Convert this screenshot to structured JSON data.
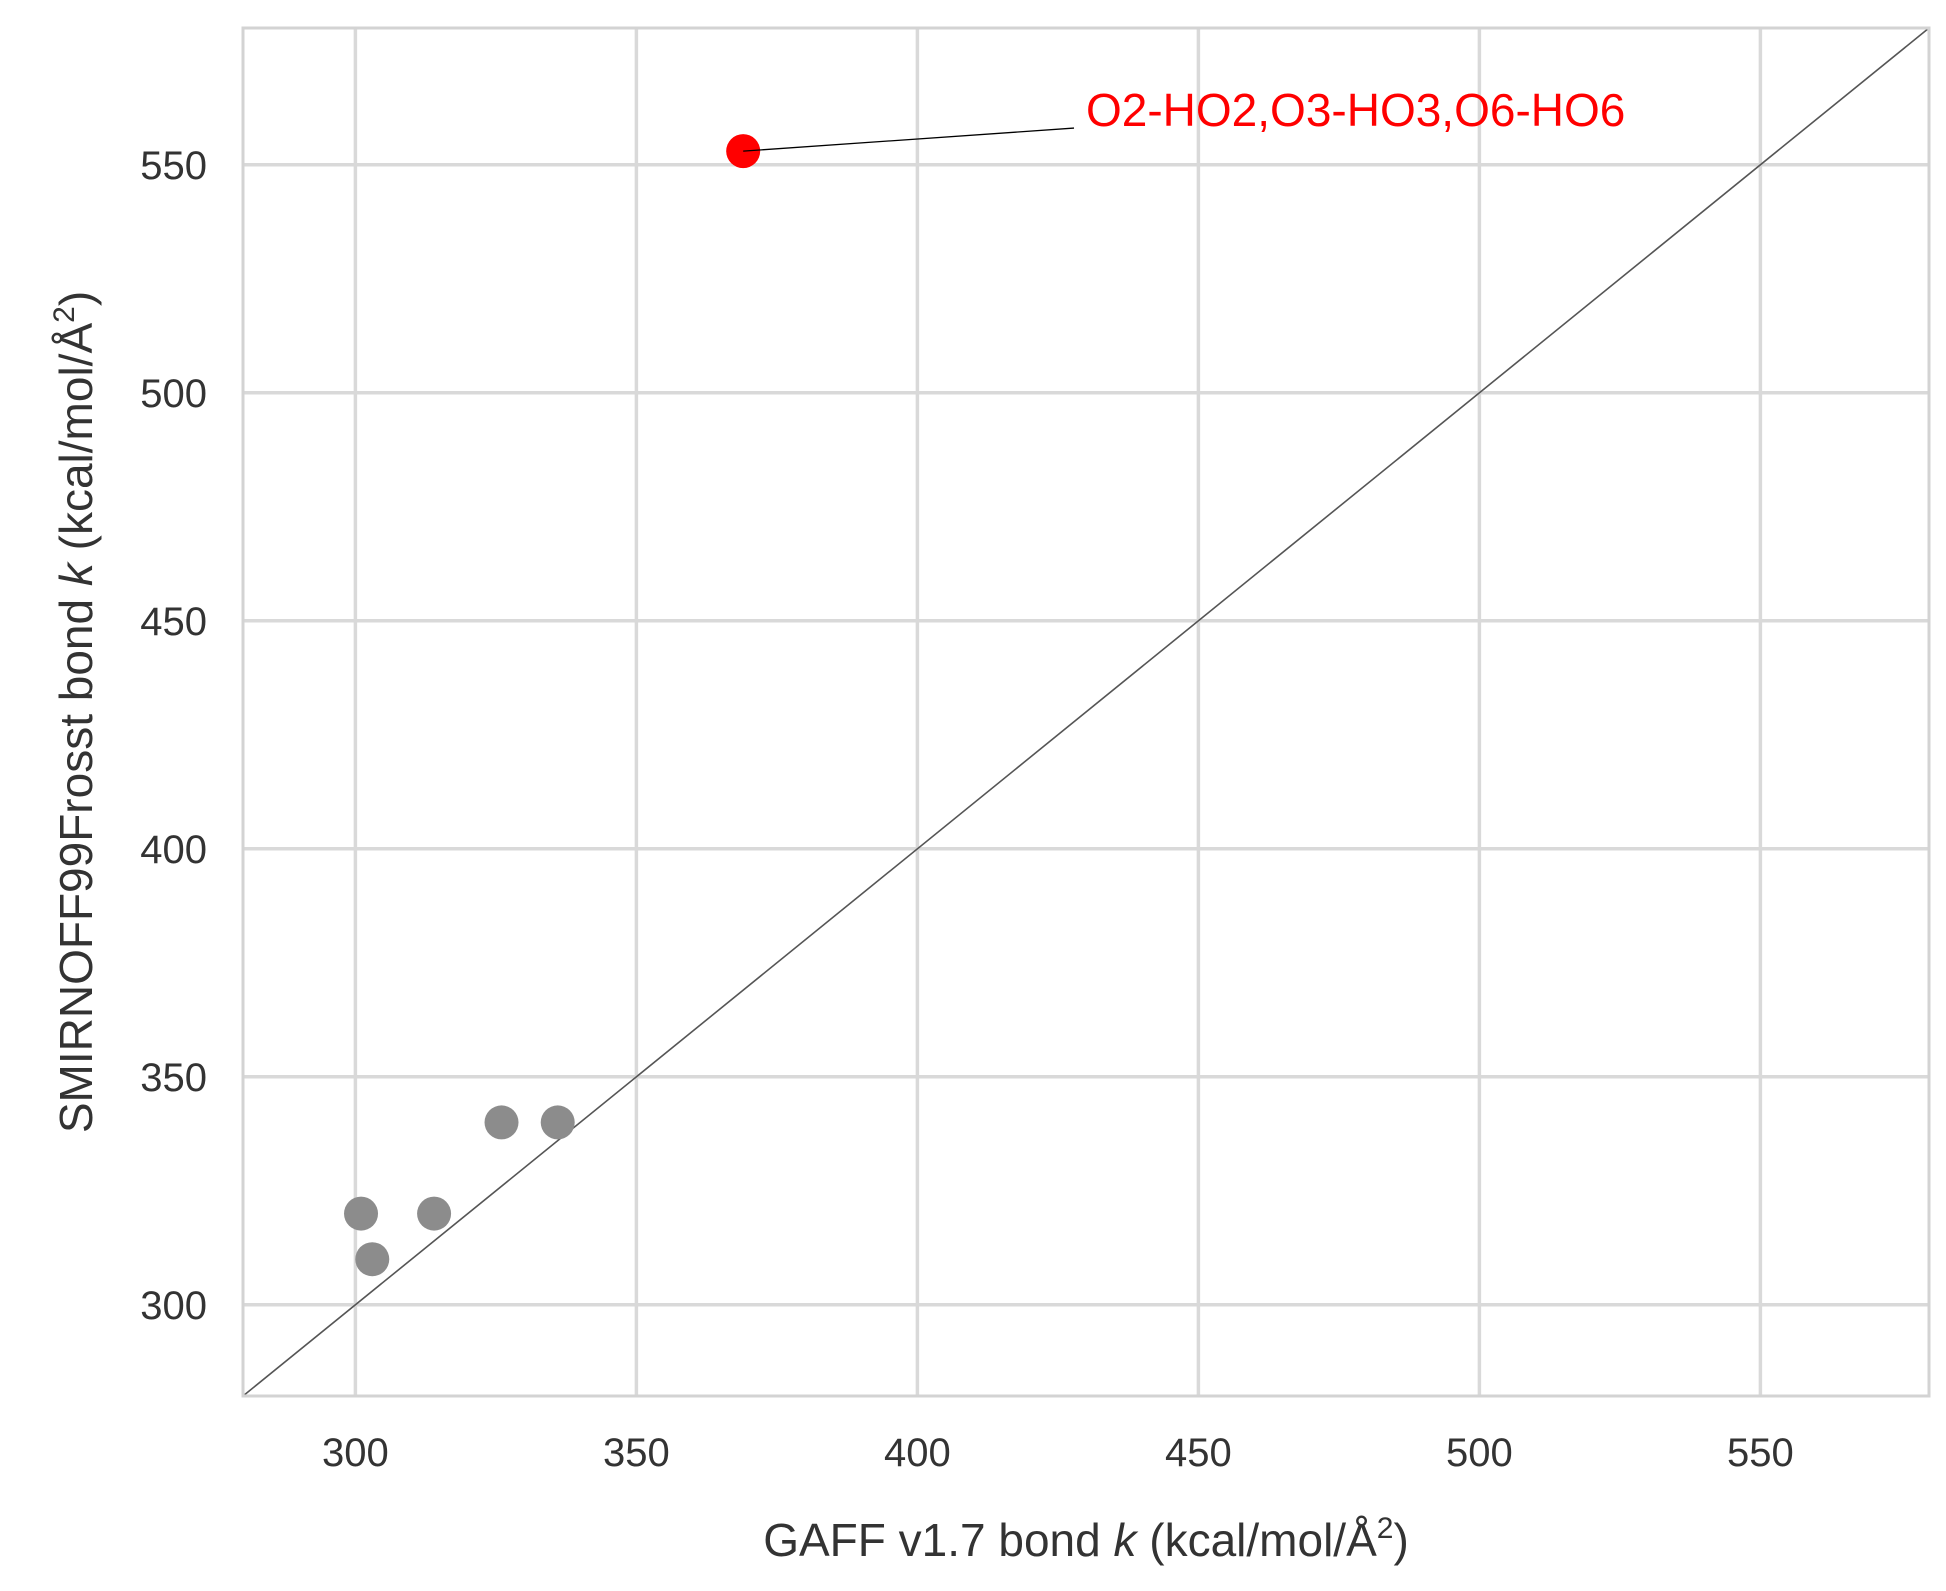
{
  "chart_data": {
    "type": "scatter",
    "xlabel": {
      "prefix": "GAFF v1.7 bond ",
      "var": "k",
      "suffix": " (kcal/mol/Å",
      "sup": "2",
      "close": ")"
    },
    "ylabel": {
      "prefix": "SMIRNOFF99Frosst bond ",
      "var": "k",
      "suffix": " (kcal/mol/Å",
      "sup": "2",
      "close": ")"
    },
    "xlim": [
      280,
      580
    ],
    "ylim": [
      280,
      580
    ],
    "xticks": [
      "300",
      "350",
      "400",
      "450",
      "500",
      "550"
    ],
    "yticks": [
      "300",
      "350",
      "400",
      "450",
      "500",
      "550"
    ],
    "grid": true,
    "reference_line": "y = x",
    "points": [
      {
        "x": 301,
        "y": 320,
        "color": "#8c8c8c"
      },
      {
        "x": 303,
        "y": 310,
        "color": "#8c8c8c"
      },
      {
        "x": 314,
        "y": 320,
        "color": "#8c8c8c"
      },
      {
        "x": 326,
        "y": 340,
        "color": "#8c8c8c"
      },
      {
        "x": 336,
        "y": 340,
        "color": "#8c8c8c"
      },
      {
        "x": 369,
        "y": 553,
        "color": "#ff0000"
      }
    ],
    "annotations": [
      {
        "text": "O2-HO2,O3-HO3,O6-HO6",
        "x": 369,
        "y": 553,
        "text_x": 430,
        "text_y": 562,
        "color": "#ff0000"
      }
    ],
    "colors": {
      "grid": "#d9d9d9",
      "frame": "#d3d3d3",
      "diagonal": "#555555",
      "text": "#333333"
    }
  }
}
